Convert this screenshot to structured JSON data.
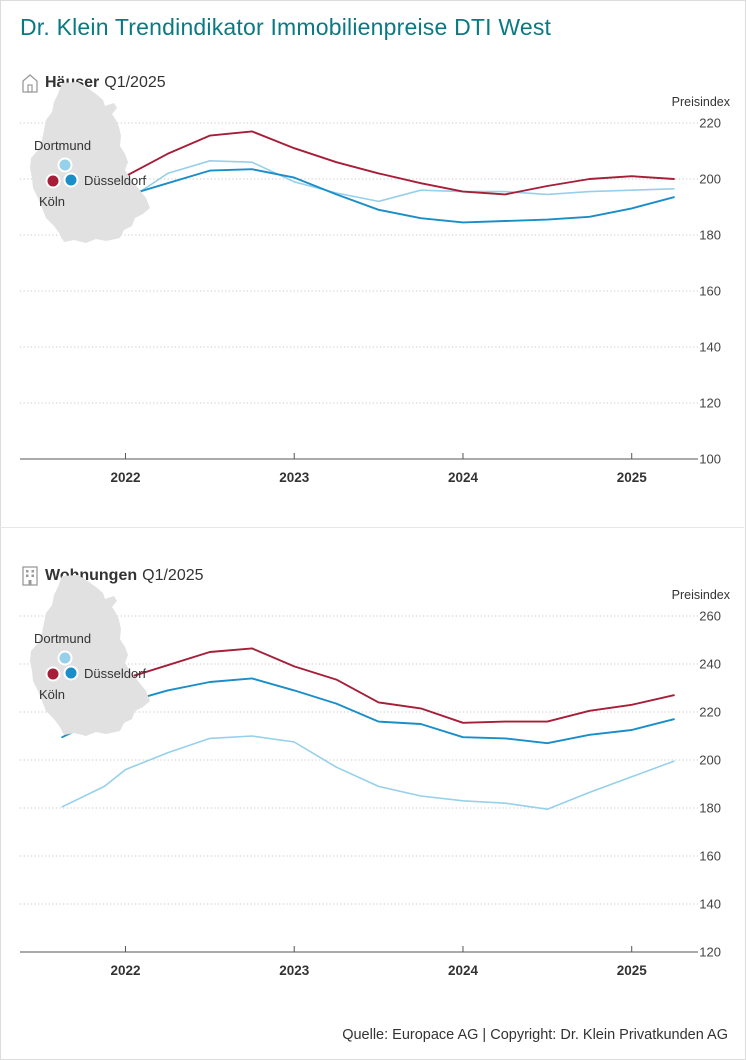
{
  "header": {
    "title": "Dr. Klein Trendindikator Immobilienpreise DTI West"
  },
  "map_labels": {
    "dortmund": "Dortmund",
    "duesseldorf": "Düsseldorf",
    "koeln": "Köln"
  },
  "footer": {
    "source": "Quelle: Europace AG | Copyright: Dr. Klein Privatkunden AG"
  },
  "colors": {
    "koeln": "#a61e38",
    "duesseldorf": "#1a8ec8",
    "dortmund": "#96d0ea",
    "title": "#0a7a82",
    "map": "#e1e1e1"
  },
  "chart_data": [
    {
      "type": "line",
      "icon": "house-icon",
      "title": "Häuser",
      "subtitle": "Q1/2025",
      "ylabel": "Preisindex",
      "ylim": [
        100,
        220
      ],
      "yticks": [
        100,
        120,
        140,
        160,
        180,
        200,
        220
      ],
      "xlim": [
        2021.375,
        2025.375
      ],
      "xticks": [
        2022,
        2023,
        2024,
        2025
      ],
      "grid": "horizontal dotted",
      "x": [
        2021.625,
        2021.875,
        2022.0,
        2022.25,
        2022.5,
        2022.75,
        2023.0,
        2023.25,
        2023.5,
        2023.75,
        2024.0,
        2024.25,
        2024.5,
        2024.75,
        2025.0,
        2025.25
      ],
      "series": [
        {
          "name": "Köln",
          "color": "#a61e38",
          "values": [
            181,
            199,
            201,
            209,
            215.5,
            217,
            211,
            206,
            202,
            198.5,
            195.5,
            194.5,
            197.5,
            200,
            201,
            200
          ]
        },
        {
          "name": "Düsseldorf",
          "color": "#1a8ec8",
          "values": [
            179.5,
            187,
            194,
            198.5,
            203,
            203.5,
            200.5,
            194.5,
            189,
            186,
            184.5,
            185,
            185.5,
            186.5,
            189.5,
            193.5
          ]
        },
        {
          "name": "Dortmund",
          "color": "#96d0ea",
          "values": [
            179,
            185,
            192,
            202,
            206.5,
            206,
            199,
            195,
            192,
            196,
            195.5,
            195.5,
            194.5,
            195.5,
            196,
            196.5
          ]
        }
      ]
    },
    {
      "type": "line",
      "icon": "building-icon",
      "title": "Wohnungen",
      "subtitle": "Q1/2025",
      "ylabel": "Preisindex",
      "ylim": [
        120,
        260
      ],
      "yticks": [
        120,
        140,
        160,
        180,
        200,
        220,
        240,
        260
      ],
      "xlim": [
        2021.375,
        2025.375
      ],
      "xticks": [
        2022,
        2023,
        2024,
        2025
      ],
      "grid": "horizontal dotted",
      "x": [
        2021.625,
        2021.875,
        2022.0,
        2022.25,
        2022.5,
        2022.75,
        2023.0,
        2023.25,
        2023.5,
        2023.75,
        2024.0,
        2024.25,
        2024.5,
        2024.75,
        2025.0,
        2025.25
      ],
      "series": [
        {
          "name": "Köln",
          "color": "#a61e38",
          "values": [
            224,
            230,
            234,
            239.5,
            245,
            246.5,
            239,
            233.5,
            224,
            221.5,
            215.5,
            216,
            216,
            220.5,
            223,
            227
          ]
        },
        {
          "name": "Düsseldorf",
          "color": "#1a8ec8",
          "values": [
            209.5,
            218,
            224,
            229,
            232.5,
            234,
            229,
            223.5,
            216,
            215,
            209.5,
            209,
            207,
            210.5,
            212.5,
            217
          ]
        },
        {
          "name": "Dortmund",
          "color": "#96d0ea",
          "values": [
            180.5,
            189,
            196,
            203,
            209,
            210,
            207.5,
            197,
            189,
            185,
            183,
            182,
            179.5,
            186.5,
            193,
            199.5
          ]
        }
      ]
    }
  ]
}
